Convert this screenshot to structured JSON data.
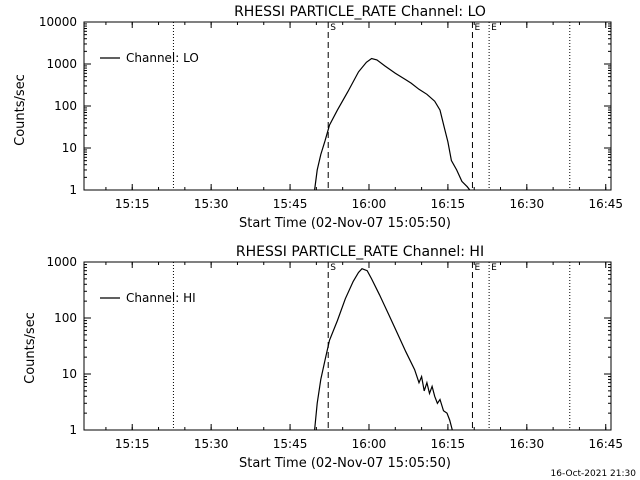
{
  "footer_timestamp": "16-Oct-2021 21:30",
  "chart_data": [
    {
      "type": "line",
      "title": "RHESSI PARTICLE_RATE Channel: LO",
      "xlabel": "Start Time (02-Nov-07 15:05:50)",
      "ylabel": "Counts/sec",
      "xlim": [
        "15:05:50",
        "16:46:00"
      ],
      "ylim": [
        1,
        10000
      ],
      "yscale": "log",
      "x_ticks": [
        "15:15",
        "15:30",
        "15:45",
        "16:00",
        "16:15",
        "16:30",
        "16:45"
      ],
      "y_ticks": [
        "1",
        "10",
        "100",
        "1000",
        "10000"
      ],
      "legend": {
        "position": "top-left",
        "entries": [
          "Channel: LO"
        ]
      },
      "markers": [
        {
          "label": "S",
          "time": "15:52:15",
          "style": "dashed"
        },
        {
          "label": "E",
          "time": "16:19:40",
          "style": "dashed"
        }
      ],
      "extra_lines": [
        {
          "label": "",
          "time": "15:22:50",
          "style": "dotted"
        },
        {
          "label": "E",
          "time": "16:22:50",
          "style": "dotted"
        },
        {
          "label": "",
          "time": "16:38:10",
          "style": "dotted"
        }
      ],
      "series": [
        {
          "name": "Channel: LO",
          "points": [
            [
              "15:49:40",
              1
            ],
            [
              "15:50:10",
              3
            ],
            [
              "15:50:50",
              7
            ],
            [
              "15:51:40",
              15
            ],
            [
              "15:52:30",
              35
            ],
            [
              "15:54:00",
              80
            ],
            [
              "15:56:00",
              220
            ],
            [
              "15:58:00",
              650
            ],
            [
              "15:59:30",
              1100
            ],
            [
              "16:00:30",
              1350
            ],
            [
              "16:01:30",
              1250
            ],
            [
              "16:03:00",
              900
            ],
            [
              "16:05:00",
              600
            ],
            [
              "16:07:00",
              420
            ],
            [
              "16:08:00",
              350
            ],
            [
              "16:09:30",
              250
            ],
            [
              "16:11:00",
              190
            ],
            [
              "16:12:30",
              130
            ],
            [
              "16:13:30",
              80
            ],
            [
              "16:14:20",
              30
            ],
            [
              "16:15:00",
              14
            ],
            [
              "16:15:40",
              5
            ],
            [
              "16:16:40",
              3
            ],
            [
              "16:17:40",
              1.6
            ],
            [
              "16:18:40",
              1.2
            ],
            [
              "16:19:10",
              1
            ]
          ]
        }
      ]
    },
    {
      "type": "line",
      "title": "RHESSI PARTICLE_RATE Channel: HI",
      "xlabel": "Start Time (02-Nov-07 15:05:50)",
      "ylabel": "Counts/sec",
      "xlim": [
        "15:05:50",
        "16:46:00"
      ],
      "ylim": [
        1,
        1000
      ],
      "yscale": "log",
      "x_ticks": [
        "15:15",
        "15:30",
        "15:45",
        "16:00",
        "16:15",
        "16:30",
        "16:45"
      ],
      "y_ticks": [
        "1",
        "10",
        "100",
        "1000"
      ],
      "legend": {
        "position": "top-left",
        "entries": [
          "Channel: HI"
        ]
      },
      "markers": [
        {
          "label": "S",
          "time": "15:52:15",
          "style": "dashed"
        },
        {
          "label": "E",
          "time": "16:19:40",
          "style": "dashed"
        }
      ],
      "extra_lines": [
        {
          "label": "",
          "time": "15:22:50",
          "style": "dotted"
        },
        {
          "label": "E",
          "time": "16:22:50",
          "style": "dotted"
        },
        {
          "label": "",
          "time": "16:38:10",
          "style": "dotted"
        }
      ],
      "series": [
        {
          "name": "Channel: HI",
          "points": [
            [
              "15:49:40",
              1
            ],
            [
              "15:50:10",
              3
            ],
            [
              "15:50:50",
              8
            ],
            [
              "15:51:40",
              18
            ],
            [
              "15:52:30",
              40
            ],
            [
              "15:54:00",
              90
            ],
            [
              "15:55:30",
              220
            ],
            [
              "15:57:00",
              450
            ],
            [
              "15:58:00",
              650
            ],
            [
              "15:58:40",
              760
            ],
            [
              "15:59:40",
              700
            ],
            [
              "16:00:30",
              500
            ],
            [
              "16:02:00",
              260
            ],
            [
              "16:03:40",
              120
            ],
            [
              "16:05:20",
              55
            ],
            [
              "16:07:00",
              25
            ],
            [
              "16:08:40",
              12
            ],
            [
              "16:09:30",
              7
            ],
            [
              "16:10:00",
              9
            ],
            [
              "16:10:30",
              5
            ],
            [
              "16:11:00",
              7
            ],
            [
              "16:11:30",
              4.5
            ],
            [
              "16:12:00",
              6
            ],
            [
              "16:12:30",
              4
            ],
            [
              "16:13:00",
              3
            ],
            [
              "16:13:30",
              3.5
            ],
            [
              "16:14:10",
              2.2
            ],
            [
              "16:14:50",
              2
            ],
            [
              "16:15:20",
              1.5
            ],
            [
              "16:15:50",
              1
            ]
          ]
        }
      ]
    }
  ]
}
